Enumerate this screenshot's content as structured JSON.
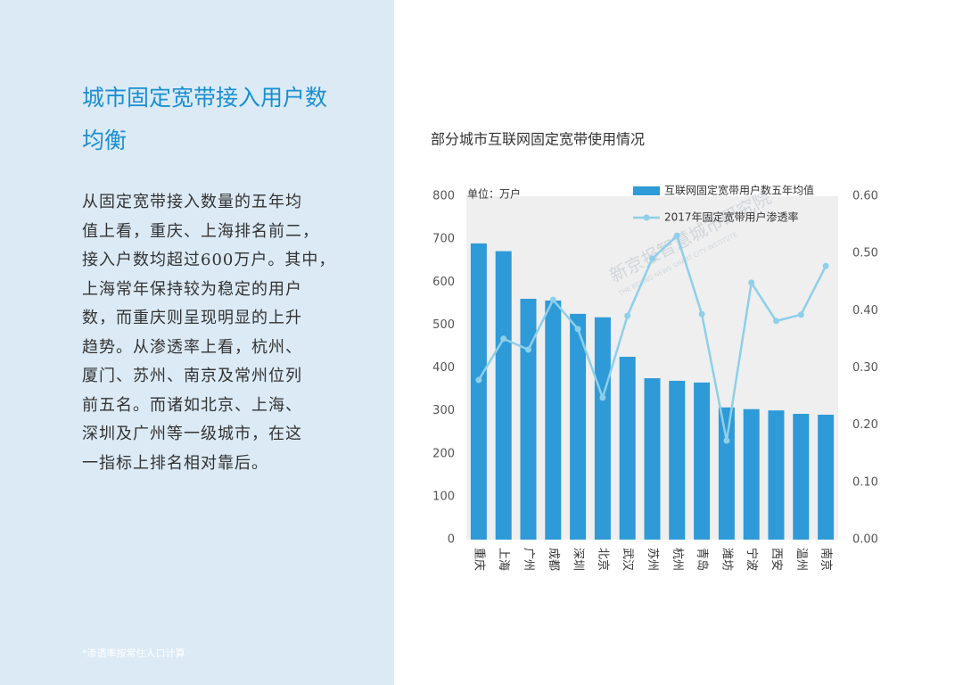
{
  "panel": {
    "title_lines": [
      "城市固定宽带接入用户数",
      "均衡"
    ],
    "body_lines": [
      "从固定宽带接入数量的五年均",
      "值上看，重庆、上海排名前二，",
      "接入户数均超过600万户。其中，",
      "上海常年保持较为稳定的用户",
      "数，而重庆则呈现明显的上升",
      "趋势。从渗透率上看，杭州、",
      "厦门、苏州、南京及常州位列",
      "前五名。而诸如北京、上海、",
      "深圳及广州等一级城市，在这",
      "一指标上排名相对靠后。"
    ],
    "footnote": "*渗透率按常住人口计算"
  },
  "chart_data": {
    "type": "bar_line",
    "title": "部分城市互联网固定宽带使用情况",
    "unit_label": "单位：万户",
    "watermark": "新京报智慧城市研究院",
    "watermark_sub": "THE BEIJING NEWS SMART CITY INSTITUTE",
    "categories": [
      "重庆",
      "上海",
      "广州",
      "成都",
      "深圳",
      "北京",
      "武汉",
      "苏州",
      "杭州",
      "青岛",
      "潍坊",
      "宁波",
      "西安",
      "温州",
      "南京"
    ],
    "series": [
      {
        "name": "互联网固定宽带用户数五年均值",
        "color": "#2e9ad8",
        "type": "bar",
        "values": [
          690,
          672,
          561,
          557,
          526,
          518,
          426,
          376,
          370,
          366,
          308,
          304,
          301,
          293,
          291
        ]
      },
      {
        "name": "2017年固定宽带用户渗透率",
        "color": "#8ecfe9",
        "type": "line",
        "axis": "y2",
        "values": [
          0.279,
          0.351,
          0.332,
          0.419,
          0.368,
          0.248,
          0.391,
          0.491,
          0.531,
          0.394,
          0.173,
          0.449,
          0.382,
          0.393,
          0.478
        ]
      }
    ],
    "ylim": [
      0,
      800
    ],
    "yticks": [
      0,
      100,
      200,
      300,
      400,
      500,
      600,
      700,
      800
    ],
    "y2lim": [
      0,
      0.6
    ],
    "y2ticks": [
      {
        "value": 0,
        "label": "0.00"
      },
      {
        "value": 0.1,
        "label": "0.10"
      },
      {
        "value": 0.2,
        "label": "0.20"
      },
      {
        "value": 0.3,
        "label": "0.30"
      },
      {
        "value": 0.4,
        "label": "0.40"
      },
      {
        "value": 0.5,
        "label": "0.50"
      },
      {
        "value": 0.6,
        "label": "0.60"
      }
    ],
    "plot_background": "#efefef"
  }
}
